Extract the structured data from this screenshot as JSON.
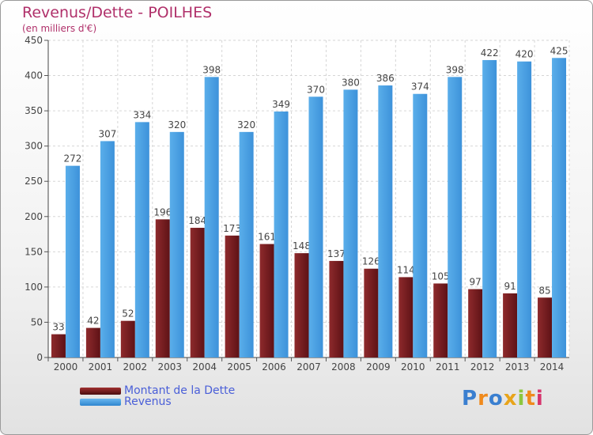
{
  "title": "Revenus/Dette - POILHES",
  "subtitle": "(en milliers d'€)",
  "logo": "Proxiti",
  "colors": {
    "dette": "#7b1f22",
    "revenus": "#4da3e3",
    "title": "#b0306a",
    "legend_text": "#4a5fd8"
  },
  "chart_data": {
    "type": "bar",
    "title": "Revenus/Dette - POILHES",
    "subtitle": "(en milliers d'€)",
    "xlabel": "",
    "ylabel": "",
    "ylim": [
      0,
      450
    ],
    "yticks": [
      0,
      50,
      100,
      150,
      200,
      250,
      300,
      350,
      400,
      450
    ],
    "grid": true,
    "legend_position": "bottom-left",
    "categories": [
      "2000",
      "2001",
      "2002",
      "2003",
      "2004",
      "2005",
      "2006",
      "2007",
      "2008",
      "2009",
      "2010",
      "2011",
      "2012",
      "2013",
      "2014"
    ],
    "series": [
      {
        "name": "Montant de la Dette",
        "color": "#7b1f22",
        "values": [
          33,
          42,
          52,
          196,
          184,
          173,
          161,
          148,
          137,
          126,
          114,
          105,
          97,
          91,
          85
        ],
        "labels": [
          "33",
          "42",
          "52",
          "196",
          "184",
          "173",
          "161",
          "148",
          "137",
          "126",
          "114",
          "105",
          "97",
          "91",
          "85"
        ]
      },
      {
        "name": "Revenus",
        "color": "#4da3e3",
        "values": [
          272,
          307,
          334,
          320,
          398,
          320,
          349,
          370,
          380,
          386,
          374,
          398,
          422,
          420,
          425
        ],
        "labels": [
          "272",
          "307",
          "334",
          "320",
          "398",
          "320",
          "349",
          "370",
          "380",
          "386",
          "374",
          "398",
          "422",
          "420",
          "425"
        ]
      }
    ]
  }
}
